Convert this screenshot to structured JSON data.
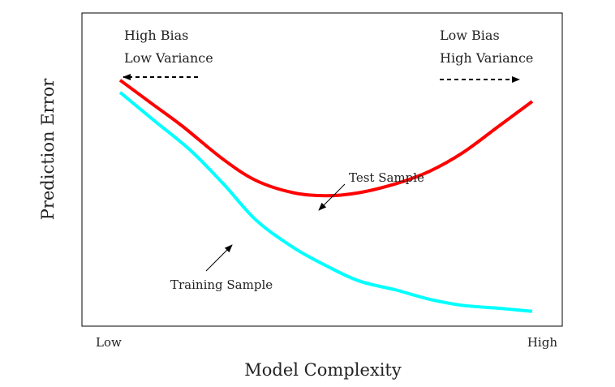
{
  "chart_data": {
    "type": "line",
    "title": "",
    "xlabel": "Model Complexity",
    "ylabel": "Prediction Error",
    "x_tick_labels": [
      "Low",
      "High"
    ],
    "xlim": [
      0,
      1
    ],
    "ylim": [
      0,
      1
    ],
    "grid": false,
    "legend": "none",
    "series": [
      {
        "name": "Test Sample",
        "color": "#ff0000",
        "x": [
          0.0,
          0.08,
          0.15,
          0.25,
          0.33,
          0.42,
          0.5,
          0.58,
          0.67,
          0.75,
          0.83,
          0.92,
          1.0
        ],
        "y": [
          0.79,
          0.71,
          0.64,
          0.53,
          0.46,
          0.42,
          0.41,
          0.42,
          0.45,
          0.49,
          0.55,
          0.64,
          0.72
        ]
      },
      {
        "name": "Training Sample",
        "color": "#00ffff",
        "x": [
          0.0,
          0.08,
          0.17,
          0.25,
          0.33,
          0.42,
          0.5,
          0.58,
          0.67,
          0.75,
          0.83,
          0.92,
          1.0
        ],
        "y": [
          0.75,
          0.66,
          0.56,
          0.45,
          0.33,
          0.24,
          0.18,
          0.13,
          0.1,
          0.07,
          0.05,
          0.04,
          0.03
        ]
      }
    ],
    "annotations": {
      "left_line1": "High Bias",
      "left_line2": "Low Variance",
      "right_line1": "Low Bias",
      "right_line2": "High Variance",
      "test_label": "Test Sample",
      "train_label": "Training Sample"
    }
  }
}
